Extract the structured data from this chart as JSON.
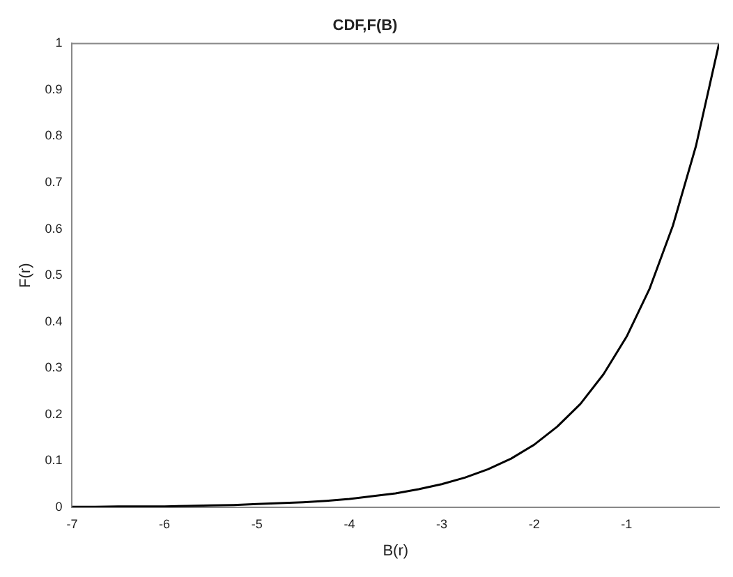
{
  "chart_data": {
    "type": "line",
    "title": "CDF,F(B)",
    "xlabel": "B(r)",
    "ylabel": "F(r)",
    "x": [
      -7,
      -6.75,
      -6.5,
      -6.25,
      -6,
      -5.75,
      -5.5,
      -5.25,
      -5,
      -4.75,
      -4.5,
      -4.25,
      -4,
      -3.75,
      -3.5,
      -3.25,
      -3,
      -2.75,
      -2.5,
      -2.25,
      -2,
      -1.75,
      -1.5,
      -1.25,
      -1,
      -0.75,
      -0.5,
      -0.25,
      0
    ],
    "series": [
      {
        "color": "#000000",
        "values": [
          0.001,
          0.001,
          0.002,
          0.002,
          0.002,
          0.003,
          0.004,
          0.005,
          0.007,
          0.009,
          0.011,
          0.014,
          0.018,
          0.024,
          0.03,
          0.039,
          0.05,
          0.064,
          0.082,
          0.105,
          0.135,
          0.174,
          0.223,
          0.287,
          0.368,
          0.472,
          0.607,
          0.779,
          1
        ]
      }
    ],
    "xlim": [
      -7,
      0
    ],
    "xticks": [
      -7,
      -6,
      -5,
      -4,
      -3,
      -2,
      -1
    ],
    "ylim": [
      0,
      1
    ],
    "yticks": [
      0,
      0.1,
      0.2,
      0.3,
      0.4,
      0.5,
      0.6,
      0.7,
      0.8,
      0.9,
      1
    ],
    "grid": false,
    "legend": false,
    "marker": "none",
    "line_style": "solid"
  }
}
